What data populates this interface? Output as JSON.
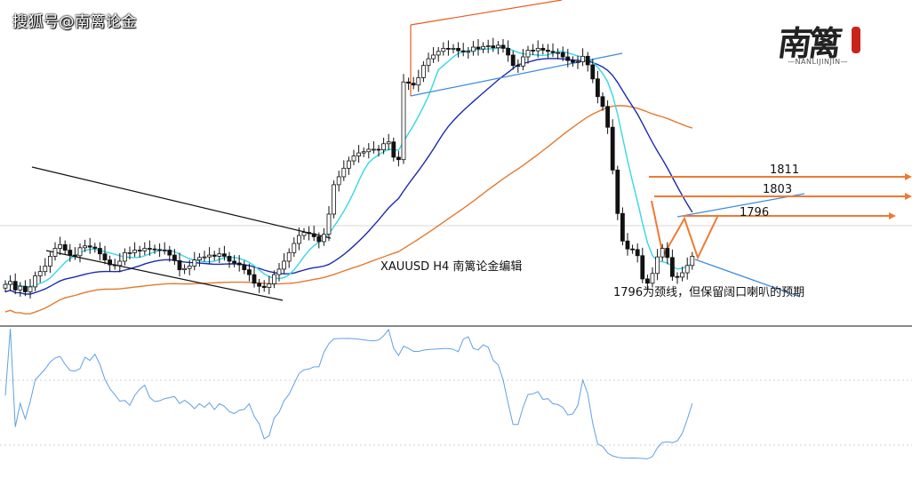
{
  "watermark": "搜狐号@南篱论金",
  "logo": {
    "text": "南篱",
    "subtext": "—NANLIJINJIN—",
    "seal_color": "#c9241c"
  },
  "chart_data": {
    "type": "candlestick",
    "symbol_label": "XAUUSD H4  南篱论金编辑",
    "candles_close": [
      1789.5,
      1790.0,
      1788.6,
      1789.2,
      1788.3,
      1789.1,
      1790.9,
      1791.6,
      1792.5,
      1794.1,
      1795.4,
      1796.0,
      1795.1,
      1794.3,
      1794.2,
      1795.5,
      1795.8,
      1795.6,
      1795.4,
      1794.5,
      1793.5,
      1792.7,
      1792.6,
      1793.3,
      1794.7,
      1794.7,
      1795.1,
      1795.0,
      1795.4,
      1795.3,
      1795.2,
      1795.1,
      1795.1,
      1794.3,
      1793.4,
      1791.9,
      1792.1,
      1792.5,
      1793.5,
      1793.9,
      1794.0,
      1794.3,
      1794.1,
      1794.5,
      1794.1,
      1793.3,
      1793.0,
      1792.7,
      1791.9,
      1791.1,
      1789.7,
      1789.2,
      1789.0,
      1789.6,
      1791.1,
      1792.0,
      1793.3,
      1794.7,
      1796.2,
      1797.5,
      1798.0,
      1797.8,
      1797.3,
      1796.5,
      1797.7,
      1801.0,
      1805.8,
      1807.1,
      1808.5,
      1809.7,
      1810.5,
      1811.0,
      1811.2,
      1811.6,
      1811.6,
      1811.5,
      1812.5,
      1812.8,
      1810.3,
      1809.9,
      1822.6,
      1822.4,
      1822.1,
      1823.3,
      1825.3,
      1826.4,
      1827.0,
      1827.6,
      1828.1,
      1828.0,
      1828.1,
      1827.7,
      1827.5,
      1827.6,
      1828.3,
      1828.0,
      1828.4,
      1828.5,
      1828.2,
      1828.6,
      1828.1,
      1827.0,
      1825.3,
      1825.2,
      1826.7,
      1827.8,
      1827.7,
      1828.1,
      1827.8,
      1827.6,
      1827.4,
      1827.4,
      1826.7,
      1826.1,
      1825.8,
      1825.9,
      1826.8,
      1825.4,
      1823.1,
      1820.2,
      1818.6,
      1815.2,
      1808.2,
      1801.1,
      1796.6,
      1795.3,
      1795.2,
      1794.2,
      1790.4,
      1789.7,
      1791.3,
      1794.0,
      1795.4,
      1793.9,
      1790.8,
      1790.7,
      1791.4,
      1792.6,
      1794.1
    ],
    "indicator": "RSI",
    "moving_averages": [
      "MA cyan",
      "MA blue",
      "MA orange"
    ],
    "annotations": [
      {
        "label": "1811",
        "value": 1811
      },
      {
        "label": "1803",
        "value": 1803
      },
      {
        "label": "1796",
        "value": 1796
      }
    ],
    "note": "1796为颈线，但保留阔口喇叭的预期",
    "colors": {
      "ma_fast": "#35d7e6",
      "ma_mid": "#1b2bb0",
      "ma_slow": "#e37a2c",
      "level_line": "#ee7a33",
      "pattern_line": "#3a8be0",
      "rsi": "#5ea1e3",
      "channel": "#111111",
      "channel_top": "#e85b1c"
    }
  }
}
